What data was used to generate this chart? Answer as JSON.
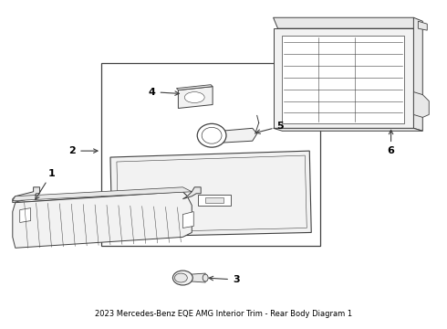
{
  "title": "2023 Mercedes-Benz EQE AMG Interior Trim - Rear Body Diagram 1",
  "bg_color": "#ffffff",
  "line_color": "#404040",
  "label_color": "#000000",
  "fig_width": 4.9,
  "fig_height": 3.6,
  "dpi": 100,
  "font_size_label": 8,
  "font_size_title": 6.0
}
